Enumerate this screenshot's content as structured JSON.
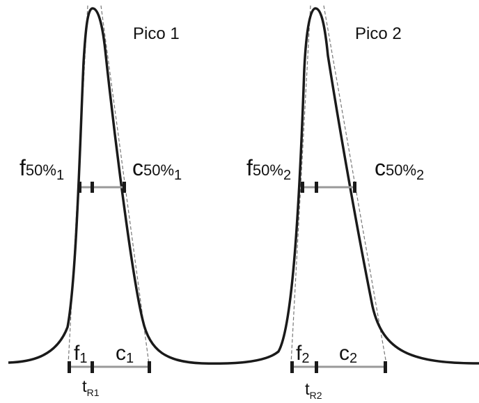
{
  "peaks": [
    {
      "title": "Pico 1",
      "front_50": {
        "base": "f",
        "sub": "50%",
        "index": "1"
      },
      "tail_50": {
        "base": "c",
        "sub": "50%",
        "index": "1"
      },
      "front_base": {
        "base": "f",
        "index": "1"
      },
      "tail_base": {
        "base": "c",
        "index": "1"
      },
      "retention": {
        "base": "t",
        "sub": "R1"
      }
    },
    {
      "title": "Pico 2",
      "front_50": {
        "base": "f",
        "sub": "50%",
        "index": "2"
      },
      "tail_50": {
        "base": "c",
        "sub": "50%",
        "index": "2"
      },
      "front_base": {
        "base": "f",
        "index": "2"
      },
      "tail_base": {
        "base": "c",
        "index": "2"
      },
      "retention": {
        "base": "t",
        "sub": "R2"
      }
    }
  ],
  "colors": {
    "curve": "#1a1a1a",
    "tangent": "#777777",
    "width_segment": "#999999",
    "tick": "#1a1a1a"
  }
}
